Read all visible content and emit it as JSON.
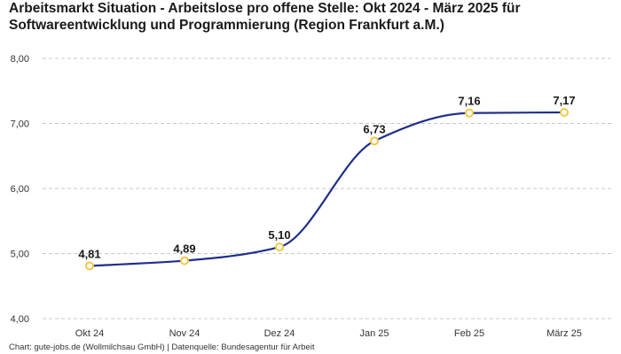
{
  "chart_data": {
    "type": "line",
    "title": "Arbeitsmarkt Situation - Arbeitslose pro offene Stelle: Okt 2024 - März 2025 für Softwareentwicklung und Programmierung (Region Frankfurt a.M.)",
    "xlabel": "",
    "ylabel": "",
    "categories": [
      "Okt 24",
      "Nov 24",
      "Dez 24",
      "Jan 25",
      "Feb 25",
      "März 25"
    ],
    "series": [
      {
        "name": "Arbeitslose pro offene Stelle",
        "values": [
          4.81,
          4.89,
          5.1,
          6.73,
          7.16,
          7.17
        ],
        "value_labels": [
          "4,81",
          "4,89",
          "5,10",
          "6,73",
          "7,16",
          "7,17"
        ]
      }
    ],
    "ylim": [
      4,
      8
    ],
    "y_ticks": [
      4,
      5,
      6,
      7,
      8
    ],
    "y_tick_labels": [
      "4,00",
      "5,00",
      "6,00",
      "7,00",
      "8,00"
    ],
    "grid": true,
    "line_color": "#1f2f8a",
    "marker_color": "#f2c744"
  },
  "footer": {
    "source_text": "Chart: gute-jobs.de (Wollmilchsau GmbH) | Datenquelle: Bundesagentur für Arbeit"
  }
}
